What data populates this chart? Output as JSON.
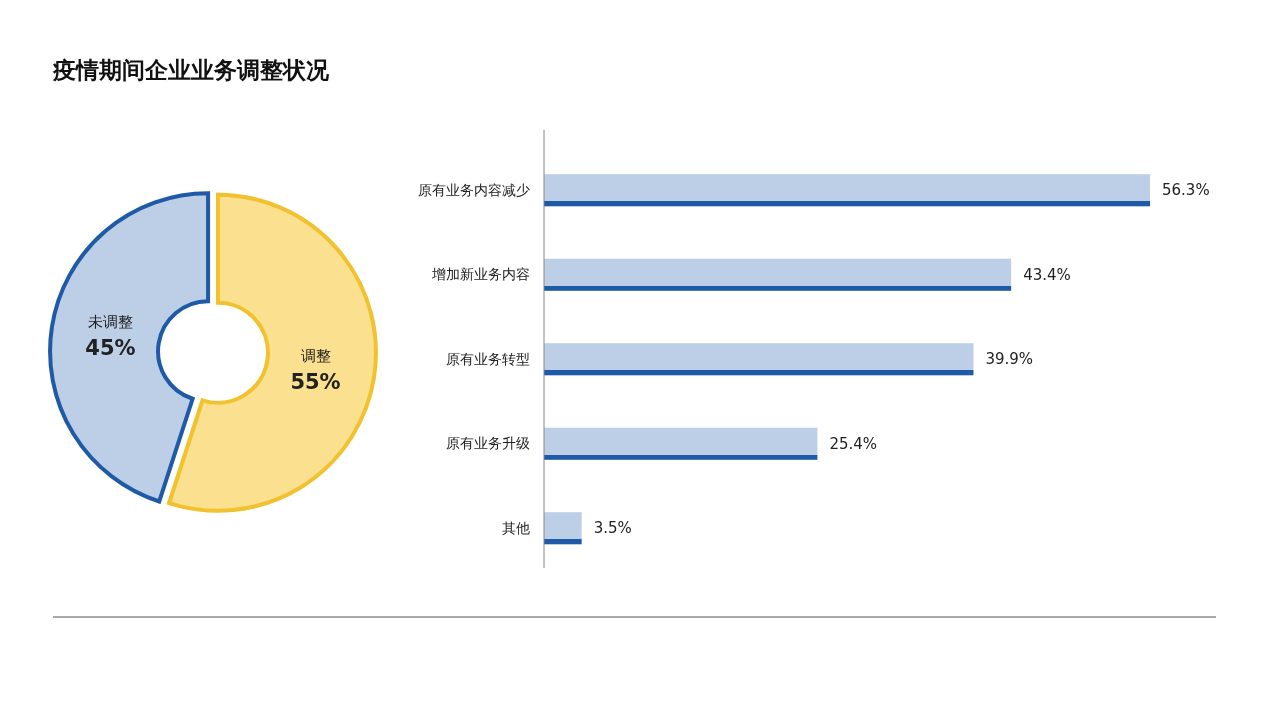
{
  "chart_data": [
    {
      "type": "donut",
      "title": "疫情期间企业业务调整状况",
      "categories": [
        "调整",
        "未调整"
      ],
      "values": [
        55,
        45
      ],
      "colors": [
        "#fbe08f",
        "#bccfe6"
      ],
      "value_labels": [
        "55%",
        "45%"
      ]
    },
    {
      "type": "bar",
      "orientation": "horizontal",
      "categories": [
        "原有业务内容减少",
        "增加新业务内容",
        "原有业务转型",
        "原有业务升级",
        "其他"
      ],
      "values": [
        56.3,
        43.4,
        39.9,
        25.4,
        3.5
      ],
      "color": "#bccfe6",
      "value_labels": [
        "56.3%",
        "43.4%",
        "39.9%",
        "25.4%",
        "3.5%"
      ]
    }
  ]
}
